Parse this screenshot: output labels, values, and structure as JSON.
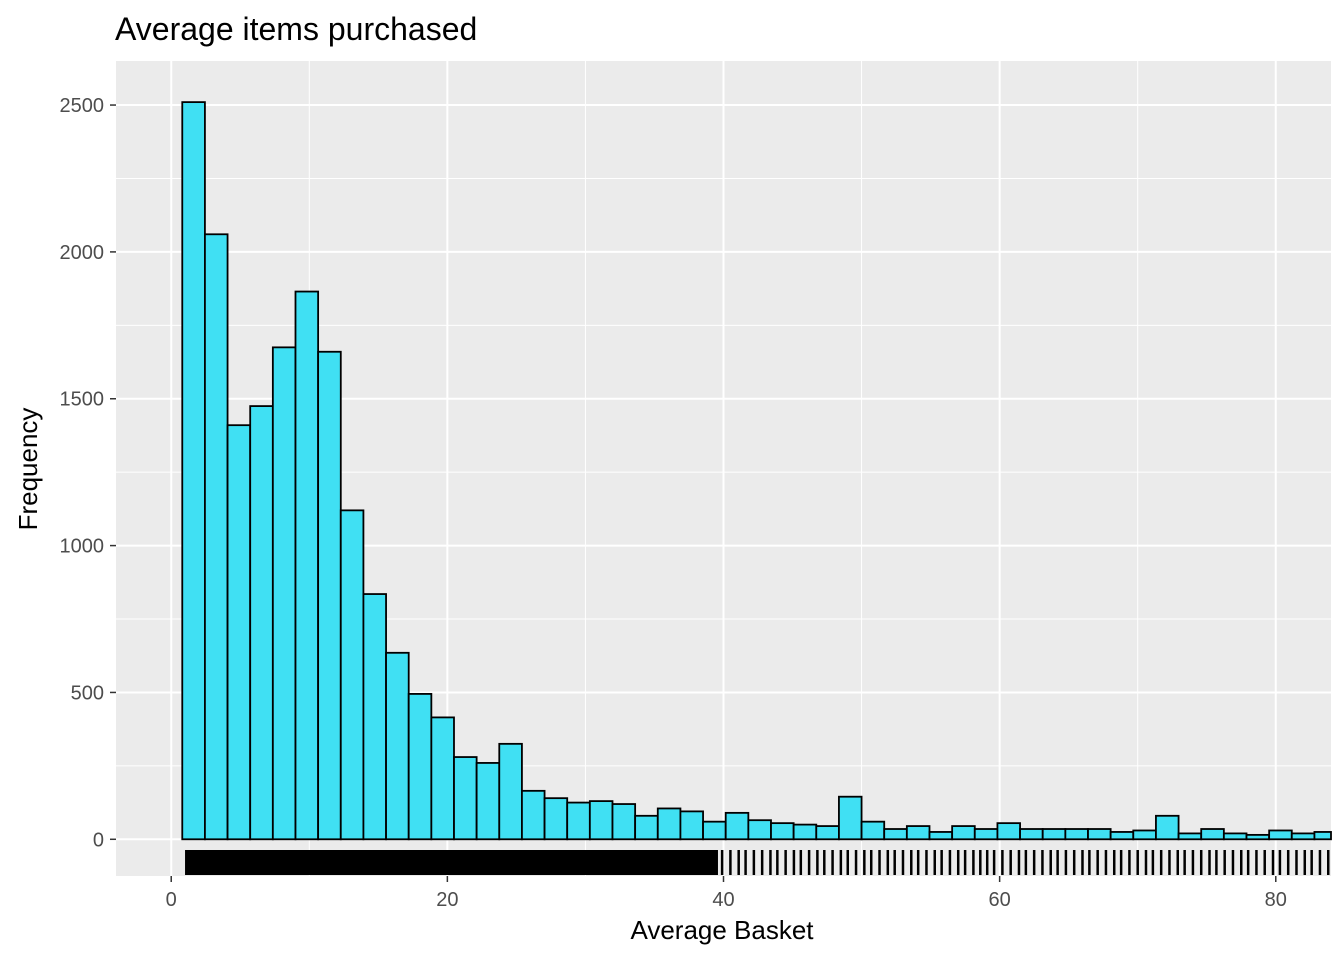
{
  "chart_data": {
    "type": "bar",
    "title": "Average items purchased",
    "xlabel": "Average Basket",
    "ylabel": "Frequency",
    "xlim": [
      -4,
      84
    ],
    "ylim": [
      -125,
      2650
    ],
    "x_ticks": [
      0,
      20,
      40,
      60,
      80
    ],
    "y_ticks": [
      0,
      500,
      1000,
      1500,
      2000,
      2500
    ],
    "grid": true,
    "bin_width": 1.64,
    "bin_centers": [
      1.62,
      3.26,
      4.9,
      6.54,
      8.18,
      9.82,
      11.46,
      13.1,
      14.74,
      16.38,
      18.02,
      19.66,
      21.3,
      22.94,
      24.58,
      26.22,
      27.86,
      29.5,
      31.14,
      32.78,
      34.42,
      36.06,
      37.7,
      39.34,
      40.98,
      42.62,
      44.26,
      45.9,
      47.54,
      49.18,
      50.82,
      52.46,
      54.1,
      55.74,
      57.38,
      59.02,
      60.66,
      62.3,
      63.94,
      65.58,
      67.22,
      68.86,
      70.5,
      72.14,
      73.78,
      75.42,
      77.06,
      78.7,
      80.34,
      81.98,
      83.62
    ],
    "values": [
      2510,
      2060,
      1410,
      1475,
      1675,
      1865,
      1660,
      1120,
      835,
      635,
      495,
      415,
      280,
      260,
      325,
      165,
      140,
      125,
      130,
      120,
      80,
      105,
      95,
      60,
      90,
      65,
      55,
      50,
      45,
      145,
      60,
      35,
      45,
      25,
      45,
      35,
      55,
      35,
      35,
      35,
      35,
      25,
      30,
      80,
      20,
      35,
      20,
      15,
      30,
      20,
      25
    ],
    "rug": {
      "dense_ranges": [
        [
          1,
          39.6
        ]
      ],
      "marks": [
        39.9,
        40.5,
        41.1,
        41.6,
        42.2,
        42.8,
        43.4,
        43.9,
        44.5,
        45.1,
        45.6,
        46.2,
        46.8,
        47.3,
        47.9,
        48.5,
        49.0,
        49.6,
        50.2,
        50.7,
        51.3,
        51.9,
        52.4,
        53.0,
        53.6,
        54.1,
        54.7,
        55.3,
        55.8,
        56.4,
        57.0,
        57.5,
        58.1,
        58.6,
        59.1,
        59.6,
        60.2,
        60.8,
        61.4,
        61.9,
        62.5,
        63.1,
        63.7,
        64.2,
        64.8,
        65.4,
        66.0,
        66.5,
        67.1,
        67.7,
        68.3,
        68.8,
        69.4,
        70.0,
        70.6,
        71.1,
        71.7,
        72.3,
        72.9,
        73.4,
        74.0,
        74.6,
        75.2,
        75.7,
        76.3,
        76.9,
        77.5,
        78.0,
        78.6,
        79.2,
        79.8,
        80.3,
        80.9,
        81.5,
        82.1,
        82.6,
        83.2,
        83.8
      ]
    },
    "colors": {
      "panel": "#EBEBEB",
      "grid_major": "#FFFFFF",
      "bar_fill": "#40E0F3",
      "bar_outline": "#000000",
      "rug": "#000000"
    }
  }
}
